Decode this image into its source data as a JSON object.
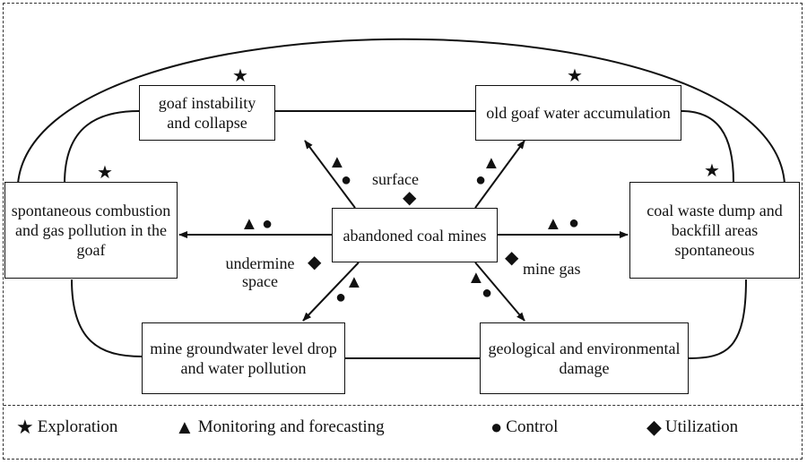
{
  "center": "abandoned coal mines",
  "nodes": {
    "top_left": "goaf instability and collapse",
    "top_right": "old goaf water accumulation",
    "mid_left": "spontaneous combustion and gas pollution in the goaf",
    "mid_right": "coal waste dump and backfill areas spontaneous",
    "bottom_left": "mine groundwater level drop and water pollution",
    "bottom_right": "geological and environmental damage"
  },
  "labels": {
    "surface": "surface",
    "undermine_space": "undermine space",
    "mine_gas": "mine gas"
  },
  "symbols": {
    "star": "★",
    "triangle": "▲",
    "circle": "●",
    "diamond": "◆"
  },
  "legend": [
    {
      "symbol": "★",
      "label": "Exploration"
    },
    {
      "symbol": "▲",
      "label": "Monitoring and forecasting"
    },
    {
      "symbol": "●",
      "label": "Control"
    },
    {
      "symbol": "◆",
      "label": "Utilization"
    }
  ]
}
